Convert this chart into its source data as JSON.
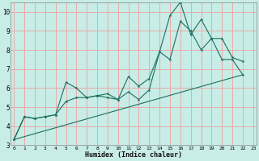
{
  "xlabel": "Humidex (Indice chaleur)",
  "xlim": [
    0,
    23
  ],
  "ylim": [
    3,
    10.5
  ],
  "yticks": [
    3,
    4,
    5,
    6,
    7,
    8,
    9,
    10
  ],
  "xticks": [
    0,
    1,
    2,
    3,
    4,
    5,
    6,
    7,
    8,
    9,
    10,
    11,
    12,
    13,
    14,
    15,
    16,
    17,
    18,
    19,
    20,
    21,
    22,
    23
  ],
  "bg_color": "#c8ece6",
  "grid_color": "#e8aaaa",
  "line_color": "#1a7060",
  "series1_x": [
    0,
    1,
    2,
    3,
    4,
    5,
    6,
    7,
    8,
    9,
    10,
    11,
    12,
    13,
    14,
    15,
    16,
    17,
    18,
    19,
    20,
    21,
    22
  ],
  "series1_y": [
    3.3,
    4.5,
    4.4,
    4.5,
    4.6,
    6.3,
    6.0,
    5.5,
    5.6,
    5.7,
    5.4,
    6.6,
    6.1,
    6.5,
    7.9,
    9.8,
    10.5,
    8.8,
    9.6,
    8.6,
    7.5,
    7.5,
    6.7
  ],
  "series2_x": [
    0,
    1,
    2,
    3,
    4,
    5,
    6,
    7,
    8,
    9,
    10,
    11,
    12,
    13,
    14,
    15,
    16,
    17,
    18,
    19,
    20,
    21,
    22
  ],
  "series2_y": [
    3.3,
    4.5,
    4.4,
    4.5,
    4.6,
    5.3,
    5.5,
    5.5,
    5.6,
    5.5,
    5.4,
    5.8,
    5.4,
    5.9,
    7.9,
    7.5,
    9.5,
    9.0,
    8.0,
    8.6,
    8.6,
    7.6,
    7.4
  ],
  "series3_x": [
    0,
    22
  ],
  "series3_y": [
    3.3,
    6.7
  ]
}
